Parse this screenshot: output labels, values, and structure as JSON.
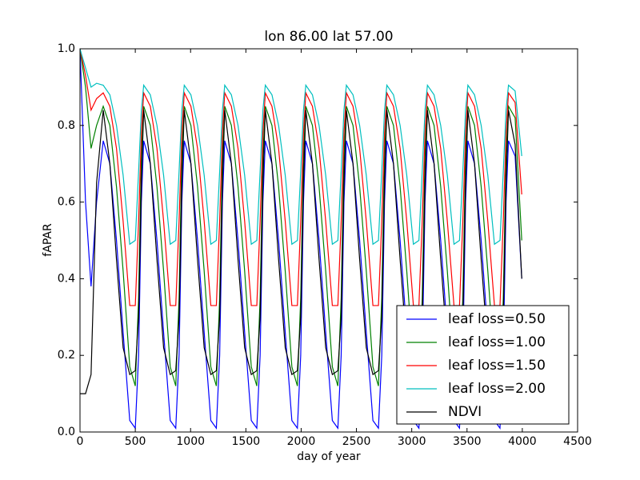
{
  "chart_data": {
    "type": "line",
    "title": "lon 86.00 lat 57.00",
    "x_label": "day of year",
    "y_label": "fAPAR",
    "x": [
      0,
      50,
      100,
      150,
      210,
      270,
      330,
      390,
      450,
      500,
      530,
      555,
      576,
      636,
      696,
      756,
      816,
      866,
      896,
      921,
      943,
      1003,
      1063,
      1123,
      1183,
      1233,
      1263,
      1288,
      1309,
      1369,
      1429,
      1489,
      1549,
      1599,
      1629,
      1654,
      1676,
      1736,
      1796,
      1856,
      1916,
      1966,
      1996,
      2021,
      2042,
      2102,
      2162,
      2222,
      2282,
      2332,
      2362,
      2387,
      2409,
      2469,
      2529,
      2589,
      2649,
      2699,
      2729,
      2754,
      2775,
      2835,
      2895,
      2955,
      3015,
      3065,
      3095,
      3120,
      3142,
      3202,
      3262,
      3322,
      3382,
      3432,
      3462,
      3487,
      3508,
      3568,
      3628,
      3688,
      3748,
      3798,
      3828,
      3853,
      3875,
      3935,
      3995
    ],
    "series": [
      {
        "name": "leaf loss=0.50",
        "color": "#0000ff",
        "values": [
          1.0,
          0.6,
          0.38,
          0.6,
          0.76,
          0.7,
          0.5,
          0.26,
          0.03,
          0.01,
          0.2,
          0.6,
          0.76,
          0.7,
          0.5,
          0.26,
          0.03,
          0.01,
          0.2,
          0.6,
          0.76,
          0.7,
          0.5,
          0.26,
          0.03,
          0.01,
          0.2,
          0.6,
          0.76,
          0.7,
          0.5,
          0.26,
          0.03,
          0.01,
          0.2,
          0.6,
          0.76,
          0.7,
          0.5,
          0.26,
          0.03,
          0.01,
          0.2,
          0.6,
          0.76,
          0.7,
          0.5,
          0.26,
          0.03,
          0.01,
          0.2,
          0.6,
          0.76,
          0.7,
          0.5,
          0.26,
          0.03,
          0.01,
          0.2,
          0.6,
          0.76,
          0.7,
          0.5,
          0.26,
          0.03,
          0.01,
          0.2,
          0.6,
          0.76,
          0.7,
          0.5,
          0.26,
          0.03,
          0.01,
          0.2,
          0.6,
          0.76,
          0.7,
          0.5,
          0.26,
          0.03,
          0.01,
          0.2,
          0.6,
          0.76,
          0.72,
          0.4
        ]
      },
      {
        "name": "leaf loss=1.00",
        "color": "#008000",
        "values": [
          1.0,
          0.9,
          0.74,
          0.8,
          0.85,
          0.8,
          0.64,
          0.42,
          0.17,
          0.12,
          0.35,
          0.72,
          0.85,
          0.8,
          0.64,
          0.42,
          0.17,
          0.12,
          0.35,
          0.72,
          0.85,
          0.8,
          0.64,
          0.42,
          0.17,
          0.12,
          0.35,
          0.72,
          0.85,
          0.8,
          0.64,
          0.42,
          0.17,
          0.12,
          0.35,
          0.72,
          0.85,
          0.8,
          0.64,
          0.42,
          0.17,
          0.12,
          0.35,
          0.72,
          0.85,
          0.8,
          0.64,
          0.42,
          0.17,
          0.12,
          0.35,
          0.72,
          0.85,
          0.8,
          0.64,
          0.42,
          0.17,
          0.12,
          0.35,
          0.72,
          0.85,
          0.8,
          0.64,
          0.42,
          0.17,
          0.12,
          0.35,
          0.72,
          0.85,
          0.8,
          0.64,
          0.42,
          0.17,
          0.12,
          0.35,
          0.72,
          0.85,
          0.8,
          0.64,
          0.42,
          0.17,
          0.12,
          0.35,
          0.72,
          0.85,
          0.82,
          0.5
        ]
      },
      {
        "name": "leaf loss=1.50",
        "color": "#ff0000",
        "values": [
          1.0,
          0.93,
          0.84,
          0.87,
          0.885,
          0.85,
          0.74,
          0.55,
          0.33,
          0.33,
          0.55,
          0.78,
          0.885,
          0.85,
          0.74,
          0.55,
          0.33,
          0.33,
          0.55,
          0.78,
          0.885,
          0.85,
          0.74,
          0.55,
          0.33,
          0.33,
          0.55,
          0.78,
          0.885,
          0.85,
          0.74,
          0.55,
          0.33,
          0.33,
          0.55,
          0.78,
          0.885,
          0.85,
          0.74,
          0.55,
          0.33,
          0.33,
          0.55,
          0.78,
          0.885,
          0.85,
          0.74,
          0.55,
          0.33,
          0.33,
          0.55,
          0.78,
          0.885,
          0.85,
          0.74,
          0.55,
          0.33,
          0.33,
          0.55,
          0.78,
          0.885,
          0.85,
          0.74,
          0.55,
          0.33,
          0.33,
          0.55,
          0.78,
          0.885,
          0.85,
          0.74,
          0.55,
          0.33,
          0.33,
          0.55,
          0.78,
          0.885,
          0.85,
          0.74,
          0.55,
          0.33,
          0.33,
          0.55,
          0.78,
          0.885,
          0.86,
          0.62
        ]
      },
      {
        "name": "leaf loss=2.00",
        "color": "#00bfbf",
        "values": [
          1.0,
          0.95,
          0.9,
          0.91,
          0.905,
          0.88,
          0.8,
          0.67,
          0.49,
          0.5,
          0.68,
          0.84,
          0.905,
          0.88,
          0.8,
          0.67,
          0.49,
          0.5,
          0.68,
          0.84,
          0.905,
          0.88,
          0.8,
          0.67,
          0.49,
          0.5,
          0.68,
          0.84,
          0.905,
          0.88,
          0.8,
          0.67,
          0.49,
          0.5,
          0.68,
          0.84,
          0.905,
          0.88,
          0.8,
          0.67,
          0.49,
          0.5,
          0.68,
          0.84,
          0.905,
          0.88,
          0.8,
          0.67,
          0.49,
          0.5,
          0.68,
          0.84,
          0.905,
          0.88,
          0.8,
          0.67,
          0.49,
          0.5,
          0.68,
          0.84,
          0.905,
          0.88,
          0.8,
          0.67,
          0.49,
          0.5,
          0.68,
          0.84,
          0.905,
          0.88,
          0.8,
          0.67,
          0.49,
          0.5,
          0.68,
          0.84,
          0.905,
          0.88,
          0.8,
          0.67,
          0.49,
          0.5,
          0.68,
          0.84,
          0.905,
          0.89,
          0.72
        ]
      },
      {
        "name": "NDVI",
        "color": "#000000",
        "values": [
          0.1,
          0.1,
          0.15,
          0.65,
          0.84,
          0.7,
          0.45,
          0.22,
          0.15,
          0.16,
          0.3,
          0.65,
          0.84,
          0.7,
          0.45,
          0.22,
          0.15,
          0.16,
          0.3,
          0.65,
          0.84,
          0.7,
          0.45,
          0.22,
          0.15,
          0.16,
          0.3,
          0.65,
          0.84,
          0.7,
          0.45,
          0.22,
          0.15,
          0.16,
          0.3,
          0.65,
          0.84,
          0.7,
          0.45,
          0.22,
          0.15,
          0.16,
          0.3,
          0.65,
          0.84,
          0.7,
          0.45,
          0.22,
          0.15,
          0.16,
          0.3,
          0.65,
          0.84,
          0.7,
          0.45,
          0.22,
          0.15,
          0.16,
          0.3,
          0.65,
          0.84,
          0.7,
          0.45,
          0.22,
          0.15,
          0.16,
          0.3,
          0.65,
          0.84,
          0.7,
          0.45,
          0.22,
          0.15,
          0.16,
          0.3,
          0.65,
          0.84,
          0.7,
          0.45,
          0.22,
          0.15,
          0.16,
          0.3,
          0.65,
          0.84,
          0.75,
          0.4
        ]
      }
    ],
    "xlim": [
      0,
      4500
    ],
    "xticks": [
      0,
      500,
      1000,
      1500,
      2000,
      2500,
      3000,
      3500,
      4000,
      4500
    ],
    "ylim": [
      0,
      1
    ],
    "yticks": [
      {
        "value": 0,
        "label": "0.0"
      },
      {
        "value": 0.2,
        "label": "0.2"
      },
      {
        "value": 0.4,
        "label": "0.4"
      },
      {
        "value": 0.6,
        "label": "0.6"
      },
      {
        "value": 0.8,
        "label": "0.8"
      },
      {
        "value": 1,
        "label": "1.0"
      }
    ],
    "legend": "lower right"
  }
}
